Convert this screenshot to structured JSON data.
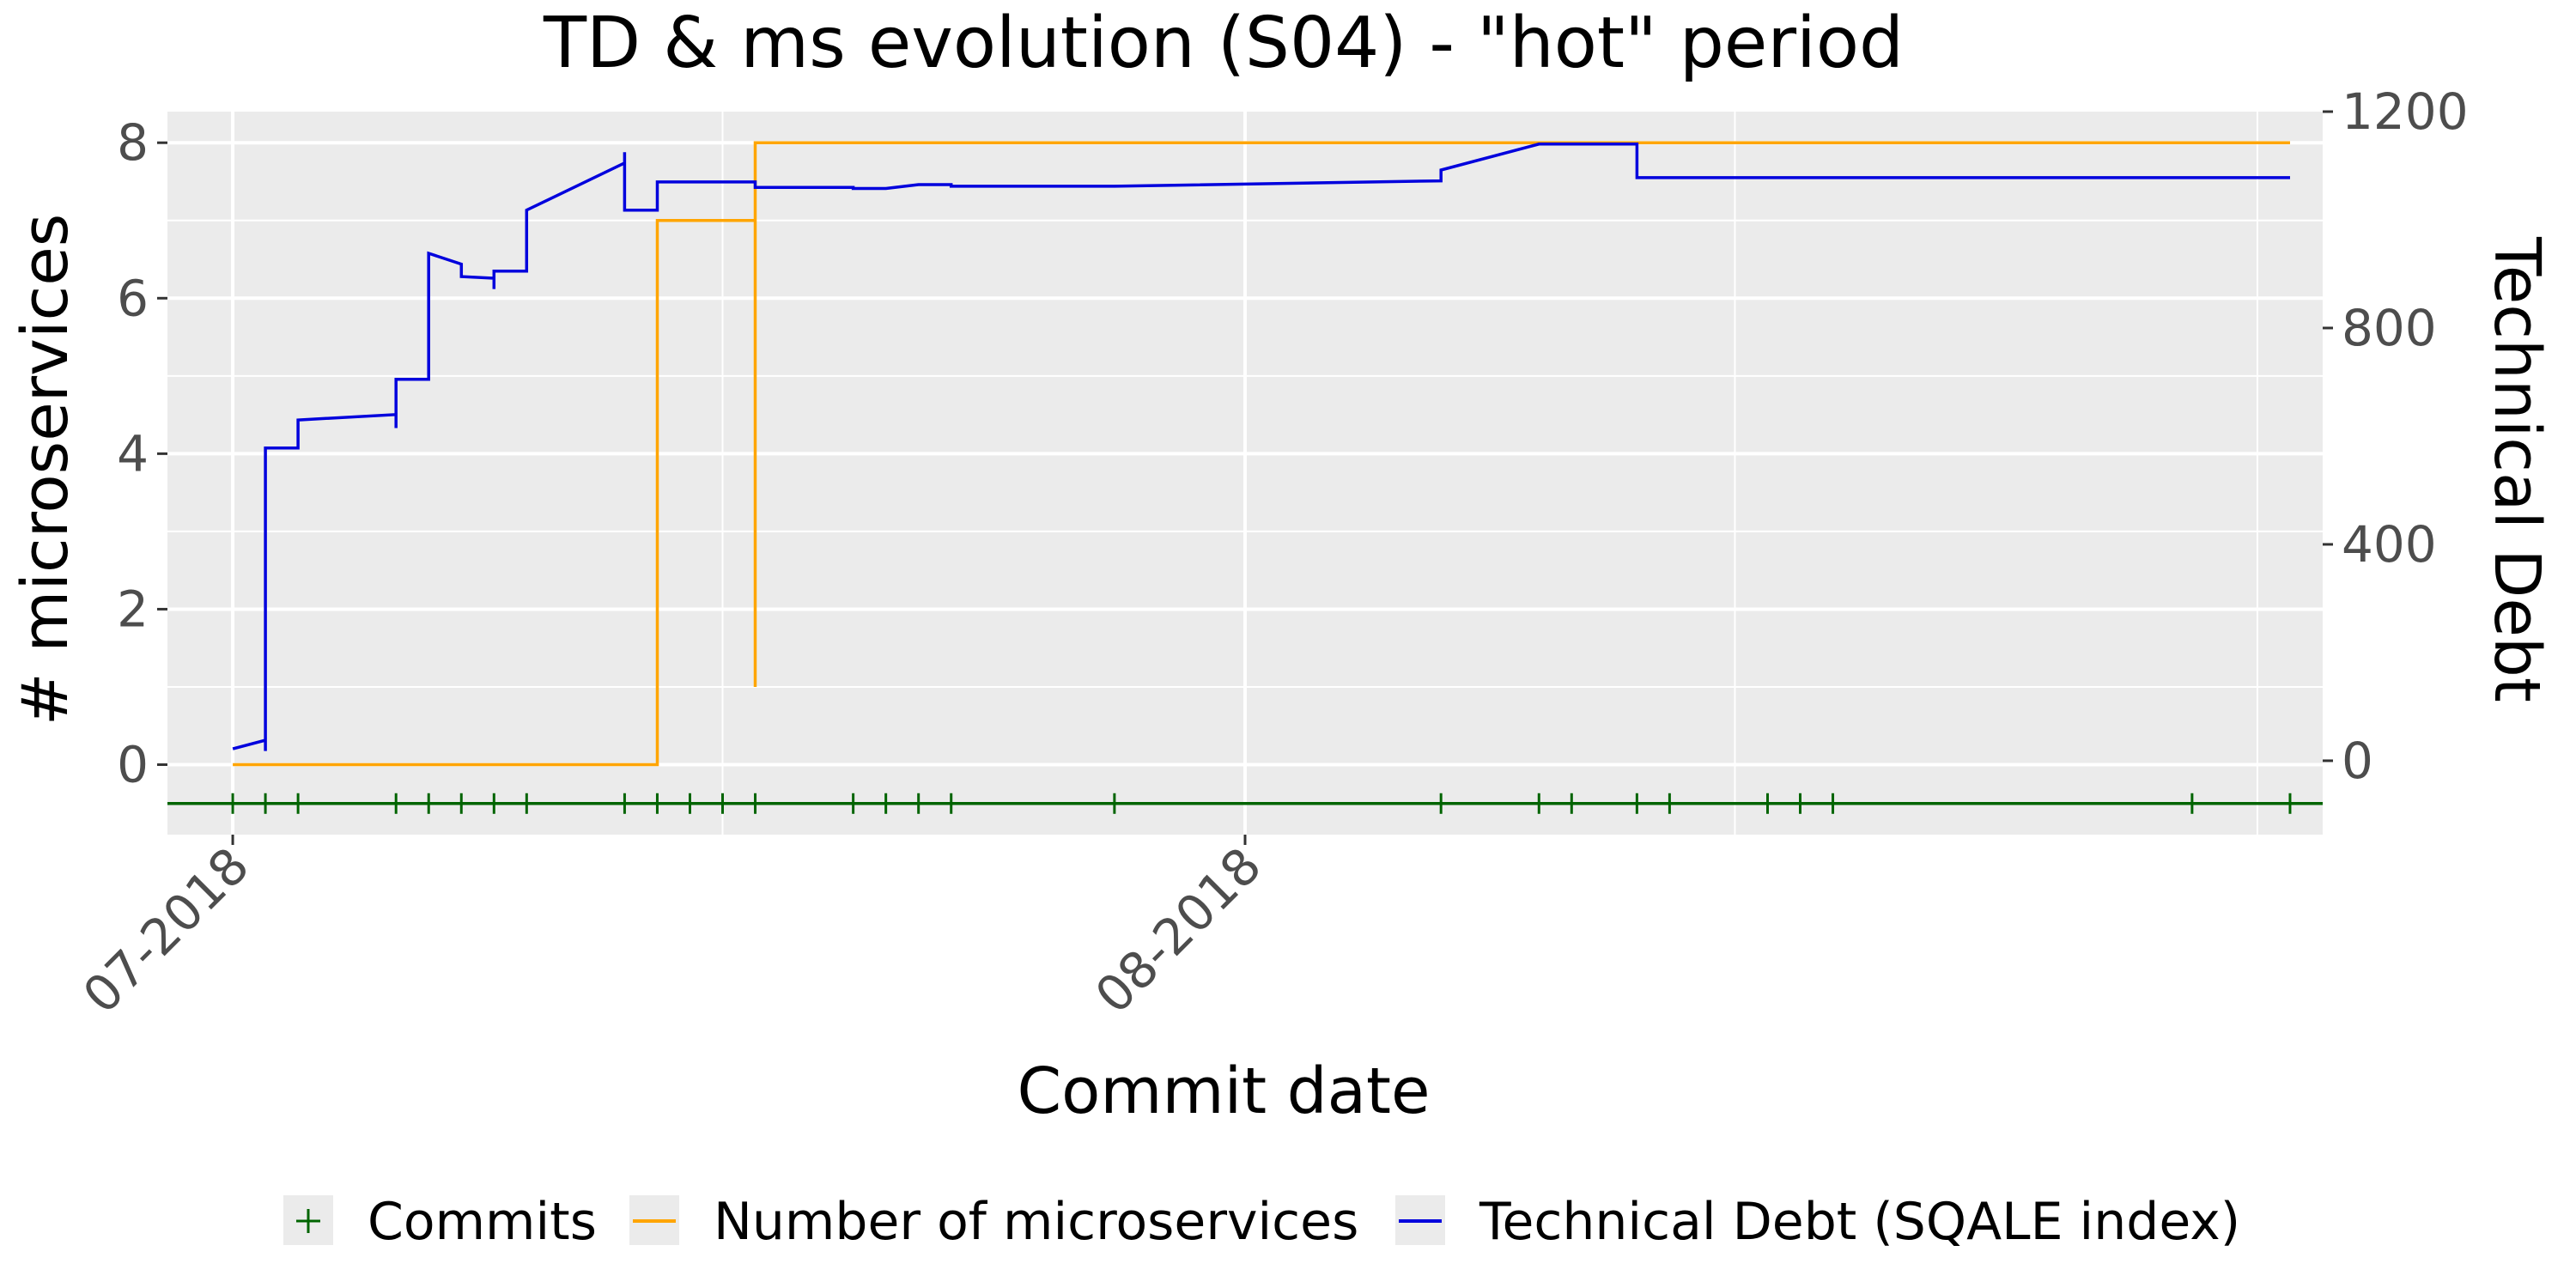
{
  "chart_data": {
    "type": "line",
    "title": "TD & ms evolution (S04) - \"hot\" period",
    "xlabel": "Commit date",
    "ylabel_left": "# microservices",
    "ylabel_right": "Technical Debt",
    "x_axis": {
      "type": "date",
      "range": [
        "2018-06-29",
        "2018-09-03"
      ],
      "major_ticks": [
        {
          "date": "2018-07-01",
          "label": "07-2018"
        },
        {
          "date": "2018-08-01",
          "label": "08-2018"
        }
      ],
      "minor_ticks": [
        "2018-07-16",
        "2018-08-16",
        "2018-09-01"
      ]
    },
    "y_left": {
      "range": [
        -0.9,
        8.4
      ],
      "ticks": [
        0,
        2,
        4,
        6,
        8
      ]
    },
    "y_right": {
      "range": [
        -136.6,
        1200
      ],
      "ticks": [
        0,
        400,
        800,
        1200
      ]
    },
    "grid": true,
    "legend_position": "bottom",
    "legend": [
      {
        "label": "Commits",
        "key": "commits"
      },
      {
        "label": "Number of microservices",
        "key": "microservices"
      },
      {
        "label": "Technical Debt (SQALE index)",
        "key": "technical_debt"
      }
    ],
    "colors": {
      "commits": "#006400",
      "microservices": "#ffa500",
      "technical_debt": "#0000dd",
      "panel": "#ebebeb",
      "grid": "#ffffff"
    },
    "commits": {
      "y": -0.5,
      "dates": [
        "2018-07-01",
        "2018-07-02",
        "2018-07-03",
        "2018-07-06",
        "2018-07-07",
        "2018-07-08",
        "2018-07-09",
        "2018-07-10",
        "2018-07-13",
        "2018-07-14",
        "2018-07-15",
        "2018-07-16",
        "2018-07-17",
        "2018-07-20",
        "2018-07-21",
        "2018-07-22",
        "2018-07-23",
        "2018-07-28",
        "2018-08-07",
        "2018-08-10",
        "2018-08-11",
        "2018-08-13",
        "2018-08-14",
        "2018-08-17",
        "2018-08-18",
        "2018-08-19",
        "2018-08-30",
        "2018-09-02"
      ]
    },
    "series": [
      {
        "name": "Number of microservices",
        "axis": "left",
        "step": true,
        "points": [
          [
            "2018-07-01",
            0
          ],
          [
            "2018-07-14",
            0
          ],
          [
            "2018-07-14",
            7
          ],
          [
            "2018-07-17",
            7
          ],
          [
            "2018-07-17",
            1
          ],
          [
            "2018-07-17",
            8
          ],
          [
            "2018-09-02",
            8
          ]
        ]
      },
      {
        "name": "Technical Debt (SQALE index)",
        "axis": "right",
        "step": false,
        "points": [
          [
            "2018-07-01",
            22
          ],
          [
            "2018-07-02",
            38
          ],
          [
            "2018-07-02",
            18
          ],
          [
            "2018-07-02",
            578
          ],
          [
            "2018-07-03",
            578
          ],
          [
            "2018-07-03",
            630
          ],
          [
            "2018-07-06",
            640
          ],
          [
            "2018-07-06",
            615
          ],
          [
            "2018-07-06",
            705
          ],
          [
            "2018-07-07",
            705
          ],
          [
            "2018-07-07",
            938
          ],
          [
            "2018-07-08",
            918
          ],
          [
            "2018-07-08",
            895
          ],
          [
            "2018-07-09",
            892
          ],
          [
            "2018-07-09",
            872
          ],
          [
            "2018-07-09",
            905
          ],
          [
            "2018-07-10",
            905
          ],
          [
            "2018-07-10",
            1018
          ],
          [
            "2018-07-13",
            1105
          ],
          [
            "2018-07-13",
            1125
          ],
          [
            "2018-07-13",
            1018
          ],
          [
            "2018-07-14",
            1018
          ],
          [
            "2018-07-14",
            1070
          ],
          [
            "2018-07-17",
            1070
          ],
          [
            "2018-07-17",
            1060
          ],
          [
            "2018-07-20",
            1060
          ],
          [
            "2018-07-20",
            1058
          ],
          [
            "2018-07-21",
            1058
          ],
          [
            "2018-07-22",
            1065
          ],
          [
            "2018-07-23",
            1065
          ],
          [
            "2018-07-23",
            1062
          ],
          [
            "2018-07-28",
            1062
          ],
          [
            "2018-08-07",
            1072
          ],
          [
            "2018-08-07",
            1092
          ],
          [
            "2018-08-10",
            1140
          ],
          [
            "2018-08-13",
            1140
          ],
          [
            "2018-08-13",
            1078
          ],
          [
            "2018-09-02",
            1078
          ]
        ]
      }
    ]
  }
}
